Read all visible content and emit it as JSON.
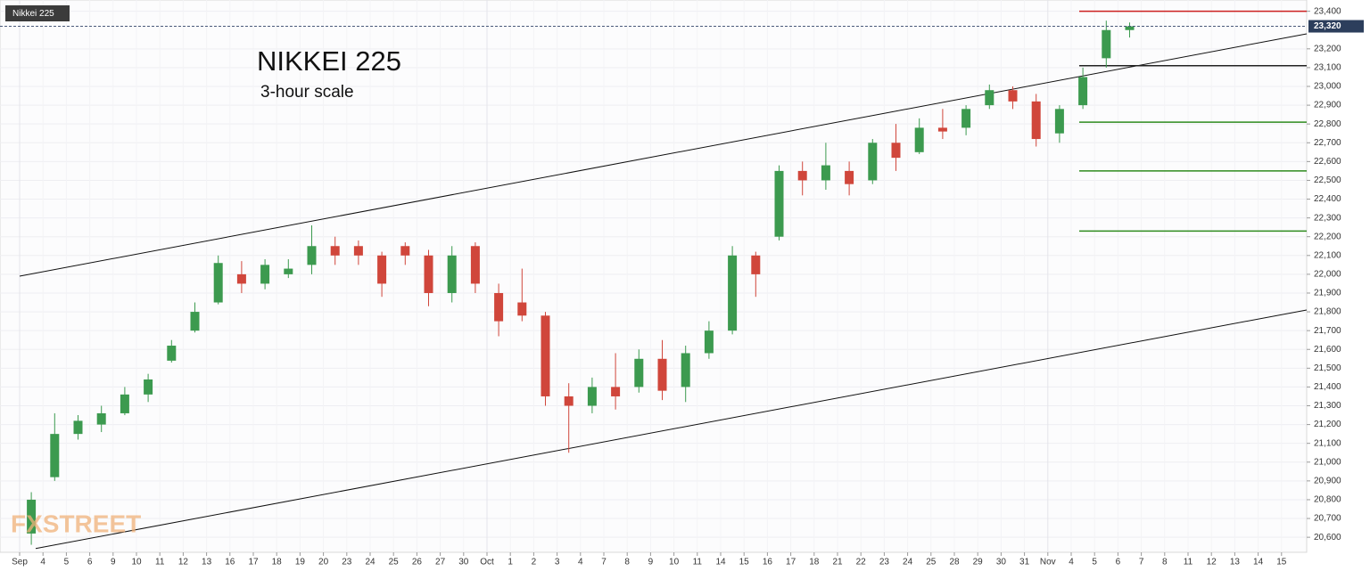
{
  "chart_data": {
    "type": "candlestick",
    "symbol": "Nikkei 225",
    "title": "NIKKEI 225",
    "subtitle": "3-hour scale",
    "watermark": "FXSTREET",
    "x_labels": [
      "Sep",
      "4",
      "5",
      "6",
      "9",
      "10",
      "11",
      "12",
      "13",
      "16",
      "17",
      "18",
      "19",
      "20",
      "23",
      "24",
      "25",
      "26",
      "27",
      "30",
      "Oct",
      "1",
      "2",
      "3",
      "4",
      "7",
      "8",
      "9",
      "10",
      "11",
      "14",
      "15",
      "16",
      "17",
      "18",
      "21",
      "22",
      "23",
      "24",
      "25",
      "28",
      "29",
      "30",
      "31",
      "Nov",
      "4",
      "5",
      "6",
      "7",
      "8",
      "11",
      "12",
      "13",
      "14",
      "15"
    ],
    "open": [
      20620,
      20920,
      21150,
      21200,
      21260,
      21360,
      21540,
      21700,
      21850,
      22000,
      21950,
      22000,
      22050,
      22150,
      22150,
      22100,
      22150,
      22100,
      21900,
      22150,
      21900,
      21850,
      21780,
      21350,
      21300,
      21400,
      21400,
      21550,
      21400,
      21580,
      21700,
      22100,
      22200,
      22550,
      22500,
      22550,
      22500,
      22700,
      22650,
      22780,
      22780,
      22900,
      22980,
      22920,
      22750,
      22900,
      23150,
      23300
    ],
    "high": [
      20840,
      21260,
      21250,
      21300,
      21400,
      21470,
      21650,
      21850,
      22100,
      22070,
      22080,
      22080,
      22260,
      22200,
      22180,
      22120,
      22170,
      22130,
      22150,
      22170,
      21950,
      22030,
      21800,
      21420,
      21450,
      21580,
      21600,
      21650,
      21620,
      21750,
      22150,
      22120,
      22580,
      22600,
      22700,
      22600,
      22720,
      22800,
      22830,
      22880,
      22900,
      23010,
      23000,
      22960,
      22900,
      23100,
      23350,
      23340
    ],
    "low": [
      20560,
      20900,
      21120,
      21160,
      21250,
      21320,
      21530,
      21690,
      21840,
      21900,
      21920,
      21980,
      22000,
      22050,
      22050,
      21880,
      22050,
      21830,
      21850,
      21900,
      21670,
      21750,
      21300,
      21050,
      21260,
      21280,
      21370,
      21330,
      21320,
      21550,
      21680,
      21880,
      22180,
      22420,
      22450,
      22420,
      22480,
      22550,
      22640,
      22720,
      22740,
      22880,
      22880,
      22680,
      22700,
      22880,
      23100,
      23260
    ],
    "close": [
      20800,
      21150,
      21220,
      21260,
      21360,
      21440,
      21620,
      21800,
      22060,
      21950,
      22050,
      22030,
      22150,
      22100,
      22100,
      21950,
      22100,
      21900,
      22100,
      21950,
      21750,
      21780,
      21350,
      21300,
      21400,
      21350,
      21550,
      21380,
      21580,
      21700,
      22100,
      22000,
      22550,
      22500,
      22580,
      22480,
      22700,
      22620,
      22780,
      22760,
      22880,
      22980,
      22920,
      22720,
      22880,
      23050,
      23300,
      23320
    ],
    "up_color": "#3c9a4f",
    "down_color": "#d0463b",
    "ylim": [
      20520,
      23460
    ],
    "yticks": [
      {
        "value": 20600,
        "label": "20,600"
      },
      {
        "value": 20700,
        "label": "20,700"
      },
      {
        "value": 20800,
        "label": "20,800"
      },
      {
        "value": 20900,
        "label": "20,900"
      },
      {
        "value": 21000,
        "label": "21,000"
      },
      {
        "value": 21100,
        "label": "21,100"
      },
      {
        "value": 21200,
        "label": "21,200"
      },
      {
        "value": 21300,
        "label": "21,300"
      },
      {
        "value": 21400,
        "label": "21,400"
      },
      {
        "value": 21500,
        "label": "21,500"
      },
      {
        "value": 21600,
        "label": "21,600"
      },
      {
        "value": 21700,
        "label": "21,700"
      },
      {
        "value": 21800,
        "label": "21,800"
      },
      {
        "value": 21900,
        "label": "21,900"
      },
      {
        "value": 22000,
        "label": "22,000"
      },
      {
        "value": 22100,
        "label": "22,100"
      },
      {
        "value": 22200,
        "label": "22,200"
      },
      {
        "value": 22300,
        "label": "22,300"
      },
      {
        "value": 22400,
        "label": "22,400"
      },
      {
        "value": 22500,
        "label": "22,500"
      },
      {
        "value": 22600,
        "label": "22,600"
      },
      {
        "value": 22700,
        "label": "22,700"
      },
      {
        "value": 22800,
        "label": "22,800"
      },
      {
        "value": 22900,
        "label": "22,900"
      },
      {
        "value": 23000,
        "label": "23,000"
      },
      {
        "value": 23100,
        "label": "23,100"
      },
      {
        "value": 23200,
        "label": "23,200"
      },
      {
        "value": 23400,
        "label": "23,400"
      }
    ],
    "last_price": {
      "value": 23320,
      "label": "23,320"
    },
    "levels": [
      {
        "value": 23400,
        "color": "#cc1f1f"
      },
      {
        "value": 23110,
        "color": "#222222"
      },
      {
        "value": 22810,
        "color": "#2e8b1e"
      },
      {
        "value": 22550,
        "color": "#2e8b1e"
      },
      {
        "value": 22230,
        "color": "#2e8b1e"
      }
    ],
    "trendlines": [
      {
        "from": 21990,
        "to": 23280
      },
      {
        "from": 20540,
        "to": 21810
      }
    ],
    "grid": true
  }
}
